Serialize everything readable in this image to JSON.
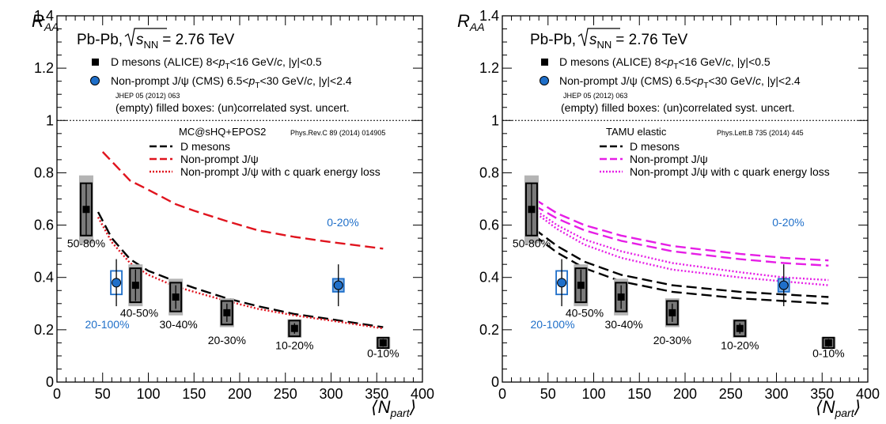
{
  "figure": {
    "system_label": "Pb-Pb,",
    "energy_symbol": "s",
    "energy_subscript": "NN",
    "energy_value": "= 2.76 TeV",
    "y_axis_main": "R",
    "y_axis_sub": "AA",
    "x_axis_main": "⟨N",
    "x_axis_sub": "part",
    "x_axis_close": "⟩",
    "legend_d_main": "D mesons (ALICE) 8<",
    "legend_d_p": "p",
    "legend_d_psub": "T",
    "legend_d_rest": "<16 GeV/",
    "legend_d_c": "c",
    "legend_d_tail": ", |y|<0.5",
    "legend_j_main": "Non-prompt J/ψ (CMS) 6.5<",
    "legend_j_p": "p",
    "legend_j_psub": "T",
    "legend_j_rest": "<30 GeV/",
    "legend_j_c": "c",
    "legend_j_tail": ", |y|<2.4",
    "legend_jhep": "JHEP 05 (2012) 063",
    "legend_boxes": "(empty) filled boxes: (un)correlated syst. uncert.",
    "colors": {
      "d_points": "#000000",
      "j_points": "#1f6fc9",
      "centrality_j": "#1f6fc9"
    }
  },
  "chart_data": [
    {
      "type": "scatter",
      "xlim": [
        0,
        400
      ],
      "ylim": [
        0,
        1.4
      ],
      "x_ticks": [
        "0",
        "50",
        "100",
        "150",
        "200",
        "250",
        "300",
        "350",
        "400"
      ],
      "y_ticks": [
        "0",
        "0.2",
        "0.4",
        "0.6",
        "0.8",
        "1",
        "1.2",
        "1.4"
      ],
      "reference_line": 1,
      "model_title": "MC@sHQ+EPOS2",
      "model_ref": "Phys.Rev.C 89 (2014) 014905",
      "model_legend": [
        "D mesons",
        "Non-prompt J/ψ",
        "Non-prompt J/ψ with c quark energy loss"
      ],
      "model_colors": [
        "#000000",
        "#e0141e",
        "#e0141e"
      ],
      "d_mesons": {
        "x": [
          32,
          86,
          130,
          186,
          260,
          357
        ],
        "y": [
          0.66,
          0.37,
          0.325,
          0.265,
          0.205,
          0.15
        ],
        "stat_err": [
          0.1,
          0.06,
          0.045,
          0.035,
          0.02,
          0.015
        ],
        "syst_uncorr": [
          0.1,
          0.065,
          0.055,
          0.045,
          0.03,
          0.02
        ],
        "syst_corr": [
          0.13,
          0.08,
          0.07,
          0.055,
          0.035,
          0.022
        ]
      },
      "jpsi": {
        "x": [
          65,
          308
        ],
        "y": [
          0.38,
          0.37
        ],
        "err_up": [
          0.09,
          0.08
        ],
        "err_down": [
          0.09,
          0.08
        ],
        "syst": [
          0.045,
          0.025
        ]
      },
      "centrality_labels": [
        {
          "text": "50-80%",
          "x": 32,
          "y": 0.515
        },
        {
          "text": "40-50%",
          "x": 90,
          "y": 0.25
        },
        {
          "text": "30-40%",
          "x": 133,
          "y": 0.205
        },
        {
          "text": "20-30%",
          "x": 186,
          "y": 0.145
        },
        {
          "text": "10-20%",
          "x": 260,
          "y": 0.125
        },
        {
          "text": "0-10%",
          "x": 357,
          "y": 0.095
        },
        {
          "text": "20-100%",
          "x": 55,
          "y": 0.205,
          "blue": true
        },
        {
          "text": "0-20%",
          "x": 313,
          "y": 0.595,
          "blue": true
        }
      ],
      "series": [
        {
          "x": [
            50,
            80,
            100,
            130,
            150,
            186,
            220,
            260,
            300,
            357
          ],
          "y": [
            0.88,
            0.77,
            0.735,
            0.68,
            0.655,
            0.615,
            0.58,
            0.555,
            0.535,
            0.51
          ],
          "color": "#e0141e",
          "dash": "long"
        },
        {
          "x": [
            45,
            60,
            80,
            100,
            130,
            150,
            186,
            220,
            260,
            300,
            357
          ],
          "y": [
            0.65,
            0.55,
            0.47,
            0.425,
            0.385,
            0.36,
            0.32,
            0.29,
            0.26,
            0.24,
            0.21
          ],
          "color": "#000000",
          "dash": "long"
        },
        {
          "x": [
            45,
            60,
            80,
            100,
            130,
            150,
            186,
            220,
            260,
            300,
            357
          ],
          "y": [
            0.63,
            0.535,
            0.455,
            0.41,
            0.365,
            0.345,
            0.31,
            0.28,
            0.255,
            0.235,
            0.205
          ],
          "color": "#e0141e",
          "dash": "dot"
        }
      ]
    },
    {
      "type": "scatter",
      "xlim": [
        0,
        400
      ],
      "ylim": [
        0,
        1.4
      ],
      "x_ticks": [
        "0",
        "50",
        "100",
        "150",
        "200",
        "250",
        "300",
        "350",
        "400"
      ],
      "y_ticks": [
        "0",
        "0.2",
        "0.4",
        "0.6",
        "0.8",
        "1",
        "1.2",
        "1.4"
      ],
      "reference_line": 1,
      "model_title": "TAMU elastic",
      "model_ref": "Phys.Lett.B 735 (2014) 445",
      "model_legend": [
        "D mesons",
        "Non-prompt J/ψ",
        "Non-prompt J/ψ with c quark energy loss"
      ],
      "model_colors": [
        "#000000",
        "#e61ee6",
        "#e61ee6"
      ],
      "d_mesons": {
        "x": [
          32,
          86,
          130,
          186,
          260,
          357
        ],
        "y": [
          0.66,
          0.37,
          0.325,
          0.265,
          0.205,
          0.15
        ],
        "stat_err": [
          0.1,
          0.06,
          0.045,
          0.035,
          0.02,
          0.015
        ],
        "syst_uncorr": [
          0.1,
          0.065,
          0.055,
          0.045,
          0.03,
          0.02
        ],
        "syst_corr": [
          0.13,
          0.08,
          0.07,
          0.055,
          0.035,
          0.022
        ]
      },
      "jpsi": {
        "x": [
          65,
          308
        ],
        "y": [
          0.38,
          0.37
        ],
        "err_up": [
          0.09,
          0.08
        ],
        "err_down": [
          0.09,
          0.08
        ],
        "syst": [
          0.045,
          0.025
        ]
      },
      "centrality_labels": [
        {
          "text": "50-80%",
          "x": 32,
          "y": 0.515
        },
        {
          "text": "40-50%",
          "x": 90,
          "y": 0.25
        },
        {
          "text": "30-40%",
          "x": 133,
          "y": 0.205
        },
        {
          "text": "20-30%",
          "x": 186,
          "y": 0.145
        },
        {
          "text": "10-20%",
          "x": 260,
          "y": 0.125
        },
        {
          "text": "0-10%",
          "x": 357,
          "y": 0.095
        },
        {
          "text": "20-100%",
          "x": 55,
          "y": 0.205,
          "blue": true
        },
        {
          "text": "0-20%",
          "x": 313,
          "y": 0.595,
          "blue": true
        }
      ],
      "series": [
        {
          "x": [
            35,
            60,
            90,
            130,
            186,
            260,
            308,
            357
          ],
          "y": [
            0.7,
            0.645,
            0.6,
            0.56,
            0.52,
            0.49,
            0.475,
            0.465
          ],
          "color": "#e61ee6",
          "dash": "long"
        },
        {
          "x": [
            35,
            60,
            90,
            130,
            186,
            260,
            308,
            357
          ],
          "y": [
            0.675,
            0.625,
            0.58,
            0.54,
            0.5,
            0.47,
            0.455,
            0.445
          ],
          "color": "#e61ee6",
          "dash": "long"
        },
        {
          "x": [
            35,
            60,
            90,
            130,
            186,
            260,
            308,
            357
          ],
          "y": [
            0.66,
            0.6,
            0.545,
            0.5,
            0.455,
            0.42,
            0.4,
            0.39
          ],
          "color": "#e61ee6",
          "dash": "dot"
        },
        {
          "x": [
            35,
            60,
            90,
            130,
            186,
            260,
            308,
            357
          ],
          "y": [
            0.65,
            0.585,
            0.525,
            0.475,
            0.43,
            0.4,
            0.385,
            0.37
          ],
          "color": "#e61ee6",
          "dash": "dot"
        },
        {
          "x": [
            35,
            60,
            90,
            130,
            186,
            260,
            308,
            357
          ],
          "y": [
            0.585,
            0.52,
            0.46,
            0.41,
            0.37,
            0.345,
            0.335,
            0.325
          ],
          "color": "#000000",
          "dash": "long"
        },
        {
          "x": [
            35,
            60,
            90,
            130,
            186,
            260,
            308,
            357
          ],
          "y": [
            0.56,
            0.495,
            0.435,
            0.385,
            0.345,
            0.32,
            0.31,
            0.3
          ],
          "color": "#000000",
          "dash": "long"
        }
      ]
    }
  ]
}
